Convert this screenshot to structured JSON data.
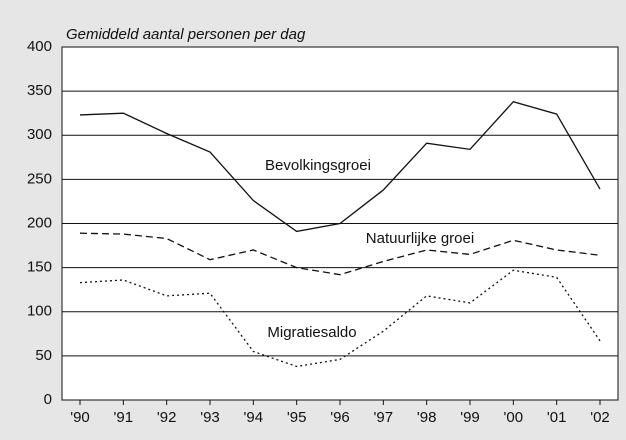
{
  "chart_data": {
    "type": "line",
    "y_label": "Gemiddeld aantal personen per dag",
    "categories": [
      "'90",
      "'91",
      "'92",
      "'93",
      "'94",
      "'95",
      "'96",
      "'97",
      "'98",
      "'99",
      "'00",
      "'01",
      "'02"
    ],
    "series": [
      {
        "name": "Bevolkingsgroei",
        "color": "#111111",
        "style": "solid",
        "values": [
          323,
          325,
          302,
          281,
          226,
          191,
          200,
          238,
          291,
          284,
          338,
          324,
          239
        ]
      },
      {
        "name": "Natuurlijke groei",
        "color": "#111111",
        "style": "dashed",
        "values": [
          189,
          188,
          183,
          159,
          170,
          150,
          142,
          157,
          170,
          165,
          181,
          170,
          164
        ]
      },
      {
        "name": "Migratiesaldo",
        "color": "#111111",
        "style": "dotted",
        "values": [
          133,
          136,
          118,
          121,
          55,
          38,
          46,
          78,
          118,
          110,
          147,
          139,
          67
        ]
      }
    ],
    "ylim": [
      0,
      400
    ],
    "yticks": [
      0,
      50,
      100,
      150,
      200,
      250,
      300,
      350,
      400
    ],
    "grid": true
  }
}
